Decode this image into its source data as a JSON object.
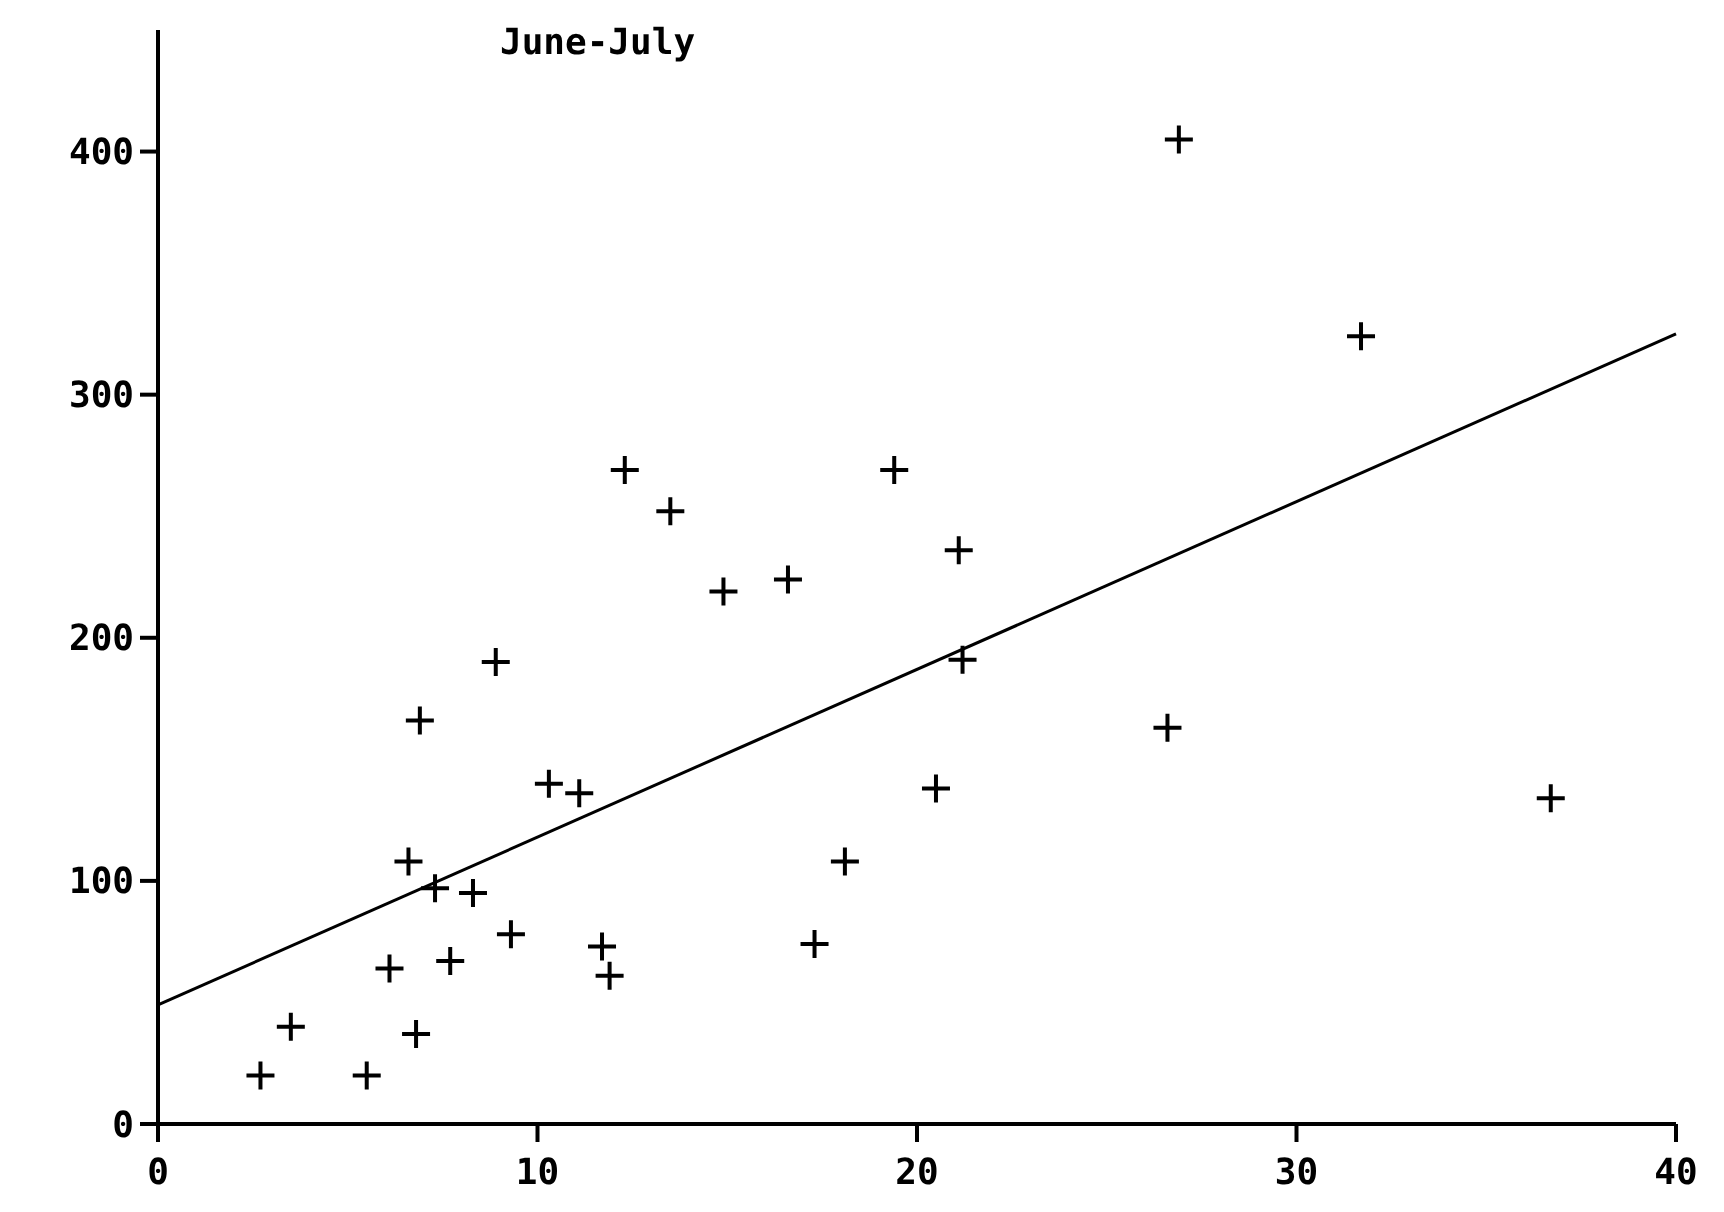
{
  "chart_data": {
    "type": "scatter",
    "title": "June-July",
    "xlim": [
      0,
      40
    ],
    "xticks": [
      0,
      10,
      20,
      30,
      40
    ],
    "ylim": [
      0,
      450
    ],
    "yticks": [
      0,
      100,
      200,
      300,
      400
    ],
    "grid": false,
    "marker": "cross",
    "series": [
      {
        "color": "#000000",
        "x": [
          2.7,
          3.5,
          5.5,
          6.1,
          6.8,
          6.6,
          6.9,
          7.3,
          7.7,
          8.3,
          8.9,
          9.3,
          10.3,
          11.1,
          11.7,
          11.9,
          12.3,
          13.5,
          14.9,
          16.6,
          17.3,
          18.1,
          19.4,
          20.5,
          21.1,
          21.2,
          26.6,
          26.9,
          31.7,
          36.7
        ],
        "values": [
          20,
          40,
          20,
          64,
          37,
          108,
          166,
          97,
          67,
          95,
          190,
          78,
          140,
          136,
          73,
          61,
          269,
          252,
          219,
          224,
          74,
          108,
          269,
          138,
          236,
          191,
          163,
          405,
          324,
          134
        ]
      },
      {
        "type": "line",
        "color": "#000000",
        "marker": "none",
        "line_style": "solid",
        "x": [
          0,
          40
        ],
        "values": [
          49,
          325
        ]
      }
    ]
  }
}
